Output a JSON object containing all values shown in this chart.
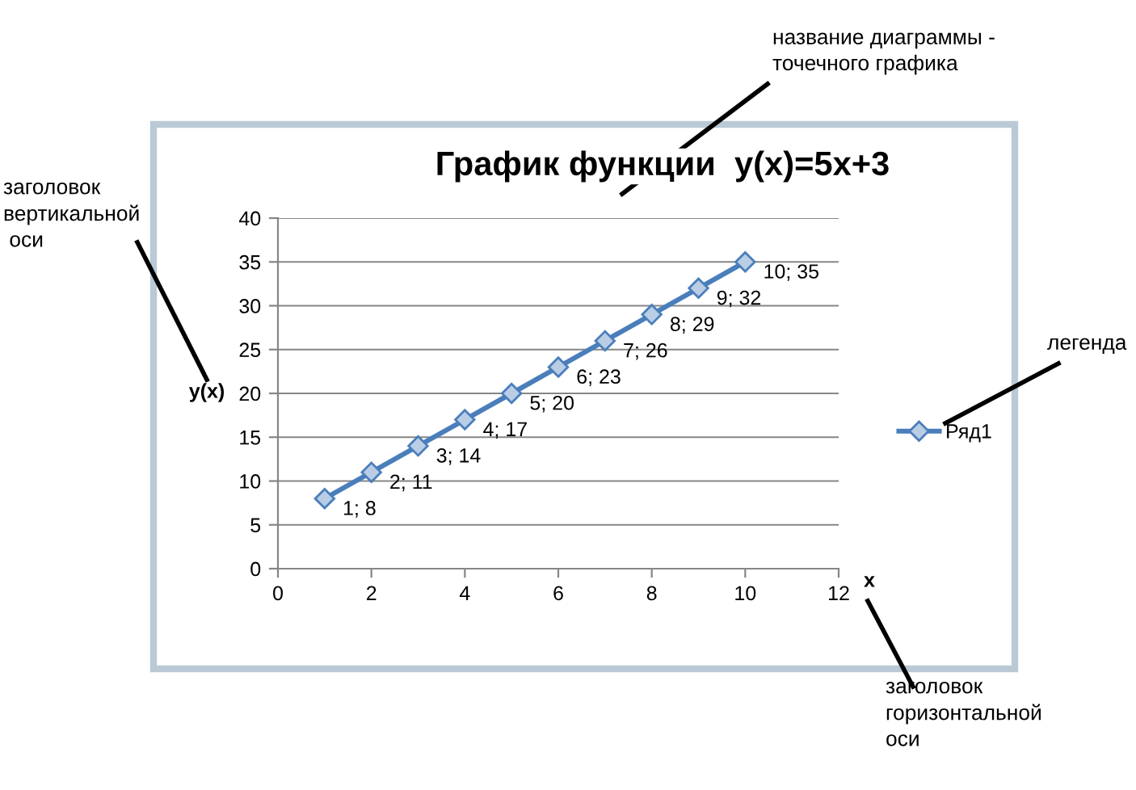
{
  "chart_data": {
    "type": "line",
    "title": "График функции  y(x)=5x+3",
    "xlabel": "x",
    "ylabel": "y(x)",
    "x": [
      1,
      2,
      3,
      4,
      5,
      6,
      7,
      8,
      9,
      10
    ],
    "series": [
      {
        "name": "Ряд1",
        "color": "#4a7ebb",
        "values": [
          8,
          11,
          14,
          17,
          20,
          23,
          26,
          29,
          32,
          35
        ],
        "value_labels": [
          "1; 8",
          "2; 11",
          "3; 14",
          "4; 17",
          "5; 20",
          "6; 23",
          "7; 26",
          "8; 29",
          "9; 32",
          "10; 35"
        ]
      }
    ],
    "xlim": [
      0,
      12
    ],
    "xticks": [
      0,
      2,
      4,
      6,
      8,
      10,
      12
    ],
    "ylim": [
      0,
      40
    ],
    "yticks": [
      0,
      5,
      10,
      15,
      20,
      25,
      30,
      35,
      40
    ],
    "grid": "y",
    "legend": "right",
    "marker": "diamond",
    "line_style": "solid",
    "annotations": [
      "название диаграммы -\nточечного графика",
      "заголовок\nвертикальной\n оси",
      "легенда",
      "заголовок\nгоризонтальной\nоси"
    ]
  }
}
